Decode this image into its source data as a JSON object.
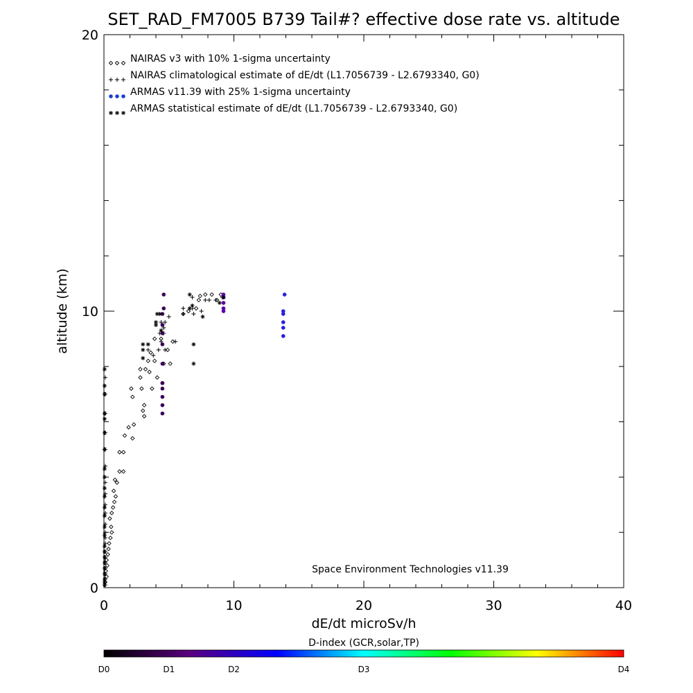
{
  "chart_data": {
    "type": "scatter",
    "title": "SET_RAD_FM7005  B739 Tail#? effective dose rate vs. altitude",
    "xlabel": "dE/dt microSv/h",
    "ylabel": "altitude (km)",
    "xlim": [
      0,
      40
    ],
    "ylim": [
      0,
      20
    ],
    "x_ticks": [
      0,
      10,
      20,
      30,
      40
    ],
    "y_ticks": [
      0,
      10,
      20
    ],
    "grid": false,
    "legend_placement": "top-left",
    "credit": "Space Environment Technologies v11.39",
    "series": [
      {
        "name": "NAIRAS v3 with 10% 1-sigma uncertainty",
        "marker": "diamond",
        "color": "#000000",
        "points": [
          [
            0.1,
            0.2
          ],
          [
            0.2,
            0.4
          ],
          [
            0.15,
            0.6
          ],
          [
            0.25,
            0.8
          ],
          [
            0.2,
            1.0
          ],
          [
            0.3,
            1.2
          ],
          [
            0.35,
            1.4
          ],
          [
            0.4,
            1.6
          ],
          [
            0.5,
            1.8
          ],
          [
            0.6,
            2.0
          ],
          [
            0.55,
            2.2
          ],
          [
            0.45,
            2.5
          ],
          [
            0.6,
            2.7
          ],
          [
            0.7,
            2.9
          ],
          [
            0.8,
            3.1
          ],
          [
            0.9,
            3.3
          ],
          [
            0.75,
            3.5
          ],
          [
            1.0,
            3.8
          ],
          [
            0.85,
            3.9
          ],
          [
            1.2,
            4.2
          ],
          [
            1.5,
            4.2
          ],
          [
            1.2,
            4.9
          ],
          [
            1.5,
            4.9
          ],
          [
            1.6,
            5.5
          ],
          [
            2.2,
            5.4
          ],
          [
            1.9,
            5.8
          ],
          [
            2.3,
            5.9
          ],
          [
            3.1,
            6.2
          ],
          [
            3.0,
            6.4
          ],
          [
            2.2,
            6.9
          ],
          [
            3.1,
            6.6
          ],
          [
            2.1,
            7.2
          ],
          [
            2.9,
            7.2
          ],
          [
            3.7,
            7.2
          ],
          [
            2.8,
            7.6
          ],
          [
            4.1,
            7.6
          ],
          [
            3.2,
            7.9
          ],
          [
            3.5,
            7.8
          ],
          [
            2.8,
            7.9
          ],
          [
            3.4,
            8.2
          ],
          [
            3.6,
            8.5
          ],
          [
            3.9,
            8.2
          ],
          [
            4.6,
            8.1
          ],
          [
            5.1,
            8.1
          ],
          [
            4.9,
            8.6
          ],
          [
            5.3,
            8.9
          ],
          [
            3.9,
            9.0
          ],
          [
            4.4,
            9.0
          ],
          [
            6.1,
            9.9
          ],
          [
            6.5,
            10.0
          ],
          [
            7.1,
            10.1
          ],
          [
            7.3,
            10.4
          ],
          [
            8.7,
            10.4
          ],
          [
            9.2,
            10.5
          ],
          [
            7.4,
            10.55
          ],
          [
            7.8,
            10.6
          ],
          [
            8.3,
            10.6
          ],
          [
            9.0,
            10.6
          ]
        ]
      },
      {
        "name": "NAIRAS climatological estimate of dE/dt (L1.7056739 - L2.6793340, G0)",
        "marker": "plus",
        "color": "#000000",
        "points": [
          [
            0.1,
            0.1
          ],
          [
            0.1,
            0.3
          ],
          [
            0.1,
            0.5
          ],
          [
            0.1,
            0.7
          ],
          [
            0.1,
            0.9
          ],
          [
            0.1,
            1.1
          ],
          [
            0.1,
            1.3
          ],
          [
            0.1,
            1.6
          ],
          [
            0.1,
            1.8
          ],
          [
            0.1,
            2.0
          ],
          [
            0.1,
            2.3
          ],
          [
            0.1,
            2.7
          ],
          [
            0.1,
            3.0
          ],
          [
            0.1,
            3.4
          ],
          [
            0.1,
            3.8
          ],
          [
            0.1,
            4.4
          ],
          [
            0.1,
            5.0
          ],
          [
            0.1,
            5.6
          ],
          [
            0.1,
            6.3
          ],
          [
            0.1,
            7.0
          ],
          [
            0.1,
            7.6
          ],
          [
            3.8,
            8.4
          ],
          [
            3.4,
            8.6
          ],
          [
            4.2,
            8.6
          ],
          [
            4.4,
            8.9
          ],
          [
            4.7,
            8.6
          ],
          [
            5.5,
            8.9
          ],
          [
            4.3,
            9.2
          ],
          [
            4.6,
            9.2
          ],
          [
            4.6,
            9.4
          ],
          [
            4.4,
            9.6
          ],
          [
            4.7,
            9.6
          ],
          [
            5.0,
            9.8
          ],
          [
            6.1,
            9.9
          ],
          [
            6.9,
            9.9
          ],
          [
            6.1,
            10.1
          ],
          [
            6.8,
            10.1
          ],
          [
            7.5,
            10.0
          ],
          [
            7.8,
            10.4
          ],
          [
            8.1,
            10.4
          ],
          [
            8.6,
            10.4
          ],
          [
            9.1,
            10.5
          ],
          [
            6.8,
            10.5
          ]
        ]
      },
      {
        "name": "ARMAS v11.39 with 25% 1-sigma uncertainty",
        "marker": "dot",
        "color": "#0033cc",
        "points": [
          [
            4.5,
            6.3
          ],
          [
            4.5,
            6.6
          ],
          [
            4.5,
            6.9
          ],
          [
            4.5,
            7.2
          ],
          [
            4.5,
            7.4
          ],
          [
            4.5,
            7.4
          ],
          [
            4.5,
            8.1
          ],
          [
            4.5,
            8.8
          ],
          [
            4.5,
            9.2
          ],
          [
            4.5,
            9.5
          ],
          [
            4.5,
            9.9
          ],
          [
            4.6,
            10.1
          ],
          [
            4.6,
            10.6
          ],
          [
            9.2,
            10.0
          ],
          [
            9.2,
            10.1
          ],
          [
            9.2,
            10.3
          ],
          [
            9.2,
            10.5
          ],
          [
            9.2,
            10.6
          ],
          [
            13.8,
            9.1
          ],
          [
            13.8,
            9.4
          ],
          [
            13.8,
            9.6
          ],
          [
            13.8,
            9.9
          ],
          [
            13.8,
            10.0
          ],
          [
            13.9,
            10.6
          ]
        ]
      },
      {
        "name": "ARMAS statistical estimate of dE/dt (L1.7056739 - L2.6793340, G0)",
        "marker": "asterisk",
        "color": "#000000",
        "points": [
          [
            0.05,
            0.1
          ],
          [
            0.05,
            0.2
          ],
          [
            0.05,
            0.3
          ],
          [
            0.05,
            0.5
          ],
          [
            0.05,
            0.7
          ],
          [
            0.05,
            0.9
          ],
          [
            0.05,
            1.1
          ],
          [
            0.05,
            1.3
          ],
          [
            0.05,
            1.5
          ],
          [
            0.05,
            1.9
          ],
          [
            0.05,
            2.2
          ],
          [
            0.05,
            2.6
          ],
          [
            0.05,
            2.9
          ],
          [
            0.05,
            3.3
          ],
          [
            0.05,
            3.6
          ],
          [
            0.05,
            4.0
          ],
          [
            0.05,
            4.3
          ],
          [
            0.05,
            5.0
          ],
          [
            0.05,
            5.6
          ],
          [
            0.05,
            6.1
          ],
          [
            0.05,
            6.3
          ],
          [
            0.05,
            7.0
          ],
          [
            0.05,
            7.3
          ],
          [
            0.05,
            7.9
          ],
          [
            3.0,
            8.3
          ],
          [
            3.0,
            8.6
          ],
          [
            3.0,
            8.8
          ],
          [
            3.4,
            8.8
          ],
          [
            4.0,
            9.5
          ],
          [
            4.0,
            9.6
          ],
          [
            4.1,
            9.9
          ],
          [
            4.4,
            9.3
          ],
          [
            4.3,
            9.9
          ],
          [
            6.9,
            8.1
          ],
          [
            6.9,
            8.8
          ],
          [
            7.6,
            9.8
          ],
          [
            6.6,
            10.1
          ],
          [
            6.6,
            10.6
          ],
          [
            8.9,
            10.3
          ],
          [
            9.2,
            10.5
          ],
          [
            6.8,
            10.2
          ]
        ]
      }
    ],
    "legend": [
      {
        "label": "NAIRAS v3 with 10% 1-sigma uncertainty",
        "marker": "diamond",
        "color": "#000000"
      },
      {
        "label": "NAIRAS climatological estimate of dE/dt (L1.7056739 - L2.6793340, G0)",
        "marker": "plus",
        "color": "#000000"
      },
      {
        "label": "ARMAS v11.39 with 25% 1-sigma uncertainty",
        "marker": "dot",
        "color": "#0033cc"
      },
      {
        "label": "ARMAS statistical estimate of dE/dt (L1.7056739 - L2.6793340, G0)",
        "marker": "asterisk",
        "color": "#000000"
      }
    ],
    "colorbar": {
      "title": "D-index (GCR,solar,TP)",
      "labels": [
        {
          "text": "D0",
          "value": 0
        },
        {
          "text": "D1",
          "value": 1
        },
        {
          "text": "D2",
          "value": 2
        },
        {
          "text": "D3",
          "value": 4
        },
        {
          "text": "D4",
          "value": 8
        }
      ],
      "range": [
        0,
        8
      ],
      "stops": [
        "#000000",
        "#5a007f",
        "#0000ff",
        "#00ffff",
        "#00ff00",
        "#ffff00",
        "#ff0000"
      ]
    }
  }
}
